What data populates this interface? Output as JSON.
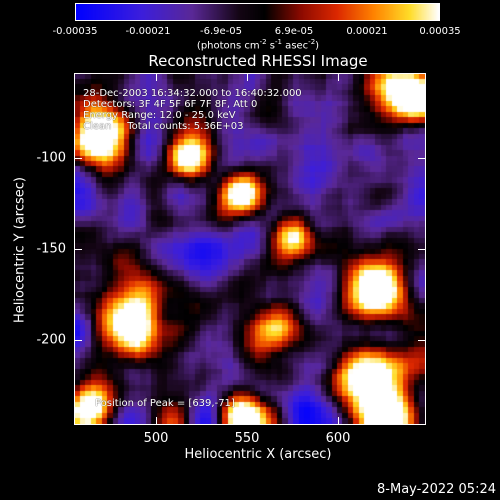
{
  "colorbar": {
    "tick_labels": [
      "-0.00035",
      "-0.00021",
      "-6.9e-05",
      "6.9e-05",
      "0.00021",
      "0.00035"
    ],
    "unit_prefix": "(photons cm",
    "unit_exp1": "-2",
    "unit_mid1": " s",
    "unit_exp2": "-1",
    "unit_mid2": " asec",
    "unit_exp3": "-2",
    "unit_suffix": ")",
    "colormap": "rhessi-blue-purple-red-yellow-white"
  },
  "title": "Reconstructed RHESSI Image",
  "annotations": {
    "time_range": "28-Dec-2003 16:34:32.000 to 16:40:32.000",
    "detectors": "Detectors: 3F 4F 5F 6F 7F 8F, Att 0",
    "energy": "Energy Range: 12.0 - 25.0 keV",
    "algorithm": "Clean     Total counts: 5.36E+03",
    "peak": "Position of Peak = [639,-71]"
  },
  "axes": {
    "xlabel": "Heliocentric X (arcsec)",
    "ylabel": "Heliocentric Y (arcsec)",
    "x_ticks": [
      "500",
      "550",
      "600"
    ],
    "y_ticks": [
      "-100",
      "-150",
      "-200"
    ],
    "x_range": [
      459,
      651
    ],
    "y_range": [
      -247,
      -55
    ]
  },
  "timestamp": "8-May-2022 05:24"
}
